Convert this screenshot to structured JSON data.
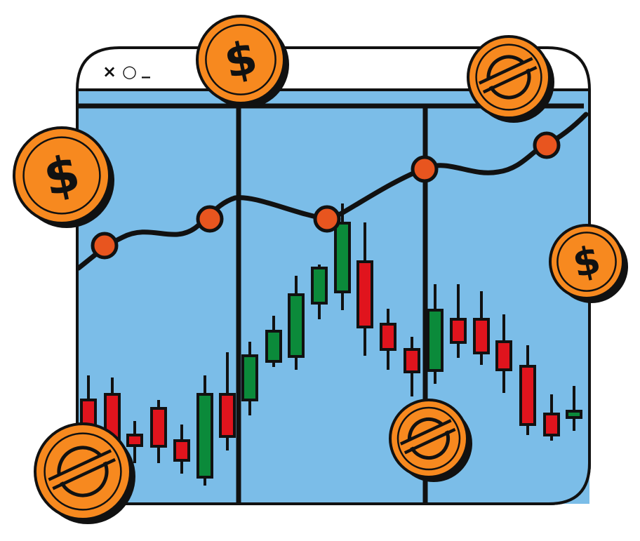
{
  "window": {
    "controls": {
      "close": "×",
      "maximize": "○",
      "minimize": "_"
    }
  },
  "coins": [
    {
      "kind": "dollar-coin",
      "symbol": "$"
    },
    {
      "kind": "dollar-coin",
      "symbol": "$"
    },
    {
      "kind": "dollar-coin",
      "symbol": "$"
    },
    {
      "kind": "stellar-coin"
    },
    {
      "kind": "stellar-coin"
    },
    {
      "kind": "stellar-coin"
    }
  ],
  "colors": {
    "panel": "#7bbde8",
    "coin": "#f7891f",
    "point": "#e8551f",
    "bullish": "#0b8a3a",
    "bearish": "#e0141d",
    "outline": "#111111"
  }
}
